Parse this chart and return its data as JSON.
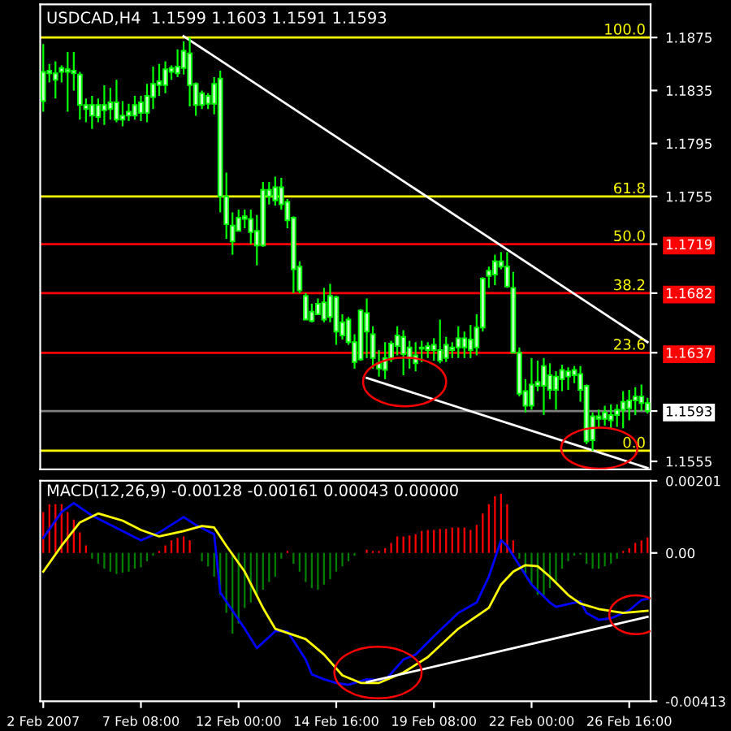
{
  "chart_data": [
    {
      "type": "candlestick",
      "title": "USDCAD,H4  1.1599 1.1603 1.1591 1.1593",
      "categories": [
        null,
        null,
        null,
        null,
        null,
        null,
        null,
        null,
        null,
        null,
        null,
        null,
        null,
        null,
        null,
        null,
        null,
        null,
        null,
        null,
        null,
        null,
        null,
        null,
        null,
        null,
        null,
        null,
        null,
        null,
        null,
        null,
        null,
        null,
        null,
        null,
        null,
        null,
        null,
        null,
        null,
        null,
        null,
        null,
        null,
        null,
        null,
        null,
        null,
        null,
        null,
        null,
        null,
        null,
        null,
        null,
        null,
        null,
        null,
        null,
        null,
        null,
        null,
        null,
        null,
        null,
        null,
        null,
        null,
        null,
        null,
        null,
        null,
        null,
        null,
        null,
        null,
        null,
        null,
        null,
        null,
        null,
        null,
        null,
        null,
        null,
        null,
        null,
        null,
        null,
        null,
        null,
        null,
        null,
        null,
        null,
        null,
        null,
        null,
        null
      ],
      "ohlc": [
        [
          1.1849,
          1.187,
          1.1819,
          1.1827
        ],
        [
          1.185,
          1.1855,
          1.1841,
          1.1848
        ],
        [
          1.1848,
          1.1857,
          1.1829,
          1.1843
        ],
        [
          1.1852,
          1.1854,
          1.1841,
          1.1849
        ],
        [
          1.1851,
          1.1864,
          1.1819,
          1.1849
        ],
        [
          1.185,
          1.1864,
          1.1835,
          1.1848
        ],
        [
          1.1847,
          1.1849,
          1.1813,
          1.1824
        ],
        [
          1.1824,
          1.1829,
          1.1811,
          1.1821
        ],
        [
          1.1824,
          1.1831,
          1.1806,
          1.1816
        ],
        [
          1.1824,
          1.1829,
          1.1811,
          1.1815
        ],
        [
          1.1824,
          1.1839,
          1.1809,
          1.182
        ],
        [
          1.1826,
          1.1837,
          1.1813,
          1.1821
        ],
        [
          1.1826,
          1.1843,
          1.1811,
          1.1813
        ],
        [
          1.1816,
          1.1827,
          1.1808,
          1.1813
        ],
        [
          1.1819,
          1.1825,
          1.1812,
          1.1816
        ],
        [
          1.1824,
          1.1831,
          1.1813,
          1.1816
        ],
        [
          1.1826,
          1.1831,
          1.1812,
          1.1818
        ],
        [
          1.1831,
          1.184,
          1.1811,
          1.1818
        ],
        [
          1.184,
          1.1853,
          1.1821,
          1.183
        ],
        [
          1.1842,
          1.1855,
          1.1831,
          1.1839
        ],
        [
          1.1851,
          1.1857,
          1.1833,
          1.1839
        ],
        [
          1.1852,
          1.1854,
          1.1843,
          1.1849
        ],
        [
          1.1853,
          1.1866,
          1.1845,
          1.1848
        ],
        [
          1.1865,
          1.1872,
          1.1847,
          1.1852
        ],
        [
          1.1863,
          1.1875,
          1.1823,
          1.1839
        ],
        [
          1.184,
          1.1841,
          1.1816,
          1.1824
        ],
        [
          1.1833,
          1.1835,
          1.1821,
          1.1824
        ],
        [
          1.1831,
          1.1833,
          1.1821,
          1.1825
        ],
        [
          1.184,
          1.1845,
          1.1817,
          1.1825
        ],
        [
          1.1844,
          1.185,
          1.1743,
          1.1755
        ],
        [
          1.1755,
          1.1773,
          1.1723,
          1.1734
        ],
        [
          1.1733,
          1.1743,
          1.1711,
          1.1721
        ],
        [
          1.1739,
          1.1745,
          1.1729,
          1.1729
        ],
        [
          1.174,
          1.1745,
          1.1731,
          1.1738
        ],
        [
          1.1738,
          1.1745,
          1.1719,
          1.1728
        ],
        [
          1.1729,
          1.1741,
          1.1703,
          1.1718
        ],
        [
          1.176,
          1.1766,
          1.1717,
          1.1718
        ],
        [
          1.176,
          1.1766,
          1.1749,
          1.1755
        ],
        [
          1.1762,
          1.177,
          1.1748,
          1.1752
        ],
        [
          1.1762,
          1.1769,
          1.1745,
          1.1749
        ],
        [
          1.1751,
          1.1753,
          1.1731,
          1.1737
        ],
        [
          1.1739,
          1.174,
          1.1682,
          1.17
        ],
        [
          1.1702,
          1.1706,
          1.1682,
          1.1684
        ],
        [
          1.168,
          1.1682,
          1.1662,
          1.1662
        ],
        [
          1.1668,
          1.1674,
          1.166,
          1.1661
        ],
        [
          1.1674,
          1.1678,
          1.1666,
          1.1666
        ],
        [
          1.1675,
          1.1686,
          1.166,
          1.1662
        ],
        [
          1.168,
          1.1689,
          1.166,
          1.1664
        ],
        [
          1.1679,
          1.168,
          1.1643,
          1.1653
        ],
        [
          1.166,
          1.1666,
          1.1647,
          1.165
        ],
        [
          1.1662,
          1.1664,
          1.1643,
          1.1645
        ],
        [
          1.1645,
          1.1651,
          1.1625,
          1.163
        ],
        [
          1.1669,
          1.167,
          1.1631,
          1.1632
        ],
        [
          1.1667,
          1.1678,
          1.1633,
          1.1653
        ],
        [
          1.1651,
          1.1657,
          1.1625,
          1.1633
        ],
        [
          1.1629,
          1.1639,
          1.1619,
          1.1625
        ],
        [
          1.1633,
          1.1645,
          1.1617,
          1.1624
        ],
        [
          1.1644,
          1.1646,
          1.163,
          1.1633
        ],
        [
          1.165,
          1.1657,
          1.1635,
          1.1642
        ],
        [
          1.1649,
          1.1654,
          1.162,
          1.1636
        ],
        [
          1.1641,
          1.1646,
          1.1625,
          1.1633
        ],
        [
          1.1635,
          1.1645,
          1.1623,
          1.1629
        ],
        [
          1.1641,
          1.1646,
          1.163,
          1.164
        ],
        [
          1.1642,
          1.1645,
          1.1633,
          1.1639
        ],
        [
          1.1643,
          1.1648,
          1.1631,
          1.1639
        ],
        [
          1.1639,
          1.1662,
          1.1629,
          1.1631
        ],
        [
          1.1643,
          1.1649,
          1.163,
          1.1633
        ],
        [
          1.1641,
          1.1645,
          1.1633,
          1.1639
        ],
        [
          1.1648,
          1.1657,
          1.1633,
          1.1641
        ],
        [
          1.1648,
          1.1653,
          1.1633,
          1.1641
        ],
        [
          1.1647,
          1.1658,
          1.1633,
          1.1639
        ],
        [
          1.1656,
          1.1666,
          1.1635,
          1.1641
        ],
        [
          1.1693,
          1.1694,
          1.1653,
          1.1656
        ],
        [
          1.1699,
          1.1702,
          1.1686,
          1.1695
        ],
        [
          1.1706,
          1.1711,
          1.1688,
          1.1696
        ],
        [
          1.1706,
          1.1713,
          1.17,
          1.1702
        ],
        [
          1.1702,
          1.1713,
          1.1686,
          1.1687
        ],
        [
          1.1686,
          1.1698,
          1.1637,
          1.1637
        ],
        [
          1.1637,
          1.1641,
          1.1604,
          1.1606
        ],
        [
          1.1608,
          1.1617,
          1.1592,
          1.1597
        ],
        [
          1.1613,
          1.1633,
          1.1594,
          1.1597
        ],
        [
          1.1615,
          1.1631,
          1.1608,
          1.1612
        ],
        [
          1.1627,
          1.1633,
          1.159,
          1.1612
        ],
        [
          1.162,
          1.1629,
          1.1602,
          1.1609
        ],
        [
          1.1619,
          1.1623,
          1.1594,
          1.1609
        ],
        [
          1.1624,
          1.1628,
          1.1608,
          1.1617
        ],
        [
          1.1623,
          1.1626,
          1.1609,
          1.1619
        ],
        [
          1.1624,
          1.1627,
          1.1614,
          1.162
        ],
        [
          1.1621,
          1.1627,
          1.16,
          1.1609
        ],
        [
          1.1612,
          1.1613,
          1.1568,
          1.157
        ],
        [
          1.1589,
          1.1592,
          1.1563,
          1.1571
        ],
        [
          1.1589,
          1.1594,
          1.158,
          1.1587
        ],
        [
          1.1592,
          1.1597,
          1.1582,
          1.1587
        ],
        [
          1.159,
          1.1598,
          1.158,
          1.1586
        ],
        [
          1.1594,
          1.1598,
          1.1581,
          1.159
        ],
        [
          1.16,
          1.1608,
          1.158,
          1.1594
        ],
        [
          1.1601,
          1.1609,
          1.1586,
          1.1595
        ],
        [
          1.1604,
          1.1611,
          1.159,
          1.1601
        ],
        [
          1.1604,
          1.1613,
          1.1593,
          1.1599
        ],
        [
          1.1599,
          1.1603,
          1.1591,
          1.1593
        ]
      ],
      "series": [
        {
          "type": "line",
          "color": "#ffffff",
          "values": [
            null,
            null,
            null,
            null,
            null,
            null,
            null,
            null,
            null,
            null,
            null,
            null,
            null,
            null,
            null,
            null,
            null,
            null,
            null,
            null,
            null,
            null,
            null,
            1.1876,
            null,
            null,
            null,
            null,
            null,
            null,
            null,
            null,
            null,
            null,
            null,
            null,
            null,
            null,
            null,
            null,
            null,
            null,
            null,
            null,
            null,
            null,
            null,
            null,
            null,
            null,
            null,
            null,
            null,
            null,
            null,
            null,
            null,
            null,
            null,
            null,
            null,
            null,
            null,
            null,
            null,
            null,
            null,
            null,
            null,
            null,
            null,
            null,
            null,
            null,
            null,
            null,
            null,
            null,
            null,
            null,
            null,
            null,
            null,
            null,
            null,
            null,
            null,
            null,
            null,
            null,
            null,
            null,
            null,
            null,
            null,
            null,
            null,
            null,
            null,
            1.1645
          ]
        },
        {
          "type": "line",
          "color": "#ffffff",
          "values": [
            null,
            null,
            null,
            null,
            null,
            null,
            null,
            null,
            null,
            null,
            null,
            null,
            null,
            null,
            null,
            null,
            null,
            null,
            null,
            null,
            null,
            null,
            null,
            null,
            null,
            null,
            null,
            null,
            null,
            null,
            null,
            null,
            null,
            null,
            null,
            null,
            null,
            null,
            null,
            null,
            null,
            null,
            null,
            null,
            null,
            null,
            null,
            null,
            null,
            null,
            null,
            null,
            null,
            1.1618,
            null,
            null,
            null,
            null,
            null,
            null,
            null,
            null,
            null,
            null,
            null,
            null,
            null,
            null,
            null,
            null,
            null,
            null,
            null,
            null,
            null,
            null,
            null,
            null,
            null,
            null,
            null,
            null,
            null,
            null,
            null,
            null,
            null,
            null,
            null,
            null,
            null,
            null,
            null,
            null,
            null,
            null,
            null,
            null,
            null,
            1.155
          ]
        }
      ],
      "ref_lines": [
        {
          "axis": "y",
          "value": 1.1875,
          "color": "#ffff00"
        },
        {
          "axis": "y",
          "value": 1.1755,
          "color": "#ffff00"
        },
        {
          "axis": "y",
          "value": 1.1719,
          "color": "#ff0000"
        },
        {
          "axis": "y",
          "value": 1.1682,
          "color": "#ff0000"
        },
        {
          "axis": "y",
          "value": 1.1637,
          "color": "#ff0000"
        },
        {
          "axis": "y",
          "value": 1.1593,
          "color": "#808080"
        },
        {
          "axis": "y",
          "value": 1.1563,
          "color": "#ffff00"
        }
      ],
      "annotations": [
        {
          "text": "100.0",
          "y": 1.1875
        },
        {
          "text": "61.8",
          "y": 1.1755
        },
        {
          "text": "50.0",
          "y": 1.1719
        },
        {
          "text": "38.2",
          "y": 1.1682
        },
        {
          "text": "23.6",
          "y": 1.1637
        },
        {
          "text": "0.0",
          "y": 1.1563
        }
      ],
      "ylim": [
        1.1549,
        1.19
      ],
      "yticks": [
        1.1875,
        1.1835,
        1.1795,
        1.1755,
        1.1719,
        1.1682,
        1.1637,
        1.1593,
        1.1555
      ]
    },
    {
      "type": "line",
      "title": "MACD(12,26,9) -0.00128 -0.00161 0.00043 0.00000",
      "categories": [
        "2 Feb 2007",
        null,
        null,
        null,
        null,
        null,
        null,
        null,
        null,
        null,
        null,
        null,
        null,
        null,
        null,
        null,
        "7 Feb 08:00",
        null,
        null,
        null,
        null,
        null,
        null,
        null,
        null,
        null,
        null,
        null,
        null,
        null,
        null,
        null,
        "12 Feb 00:00",
        null,
        null,
        null,
        null,
        null,
        null,
        null,
        null,
        null,
        null,
        null,
        null,
        null,
        null,
        null,
        "14 Feb 16:00",
        null,
        null,
        null,
        null,
        null,
        null,
        null,
        null,
        null,
        null,
        null,
        null,
        null,
        null,
        null,
        "19 Feb 08:00",
        null,
        null,
        null,
        null,
        null,
        null,
        null,
        null,
        null,
        null,
        null,
        null,
        null,
        null,
        null,
        "22 Feb 00:00",
        null,
        null,
        null,
        null,
        null,
        null,
        null,
        null,
        null,
        null,
        null,
        null,
        null,
        null,
        null,
        "26 Feb 16:00",
        null,
        null,
        null
      ],
      "series": [
        {
          "type": "bar",
          "values": [
            0.00114,
            0.00136,
            0.00136,
            0.00136,
            0.00114,
            0.00093,
            0.00057,
            0.00021,
            -0.00016,
            -0.0003,
            -0.00044,
            -0.00052,
            -0.00059,
            -0.00055,
            -0.00052,
            -0.00044,
            -0.0004,
            -0.00023,
            -8e-05,
            6e-05,
            0.00021,
            0.00035,
            0.00042,
            0.00046,
            0.00035,
            0,
            -0.00023,
            -0.00037,
            -0.00066,
            -0.00117,
            -0.00167,
            -0.00225,
            -0.00196,
            -0.00153,
            -0.00138,
            -0.00117,
            -0.00102,
            -0.00081,
            -0.00066,
            -0.00016,
            6e-05,
            -0.0003,
            -0.00052,
            -0.00081,
            -0.00098,
            -0.00102,
            -0.00088,
            -0.00073,
            -0.00052,
            -0.00037,
            -0.00023,
            -8e-05,
            0,
            9e-05,
            6e-05,
            6e-05,
            0.00013,
            0.00028,
            0.00046,
            0.00046,
            0.00049,
            0.00052,
            0.00061,
            0.00064,
            0.00064,
            0.00067,
            0.00067,
            0.00071,
            0.00071,
            0.00071,
            0.00064,
            0.00078,
            0.0011,
            0.00136,
            0.00158,
            0.00165,
            0.00136,
            0.00035,
            -0.00016,
            -0.00066,
            -0.00088,
            -0.00117,
            -0.00117,
            -0.00098,
            -0.00081,
            -0.00044,
            -0.00023,
            -8e-05,
            -5e-05,
            -0.0003,
            -0.00044,
            -0.00044,
            -0.00037,
            -0.0003,
            -0.00016,
            6e-05,
            0.00013,
            0.00028,
            0.00035,
            0.00043
          ],
          "colors": [
            "#ff0000",
            "#ff0000",
            "#ff0000",
            "#ff0000",
            "#ff0000",
            "#ff0000",
            "#ff0000",
            "#ff0000",
            "#008000",
            "#008000",
            "#008000",
            "#008000",
            "#008000",
            "#008000",
            "#008000",
            "#008000",
            "#008000",
            "#008000",
            "#008000",
            "#ff0000",
            "#ff0000",
            "#ff0000",
            "#ff0000",
            "#ff0000",
            "#ff0000",
            "#008000",
            "#008000",
            "#008000",
            "#008000",
            "#008000",
            "#008000",
            "#008000",
            "#008000",
            "#008000",
            "#008000",
            "#008000",
            "#008000",
            "#008000",
            "#008000",
            "#008000",
            "#ff0000",
            "#008000",
            "#008000",
            "#008000",
            "#008000",
            "#008000",
            "#008000",
            "#008000",
            "#008000",
            "#008000",
            "#008000",
            "#008000",
            "#008000",
            "#ff0000",
            "#ff0000",
            "#ff0000",
            "#ff0000",
            "#ff0000",
            "#ff0000",
            "#ff0000",
            "#ff0000",
            "#ff0000",
            "#ff0000",
            "#ff0000",
            "#ff0000",
            "#ff0000",
            "#ff0000",
            "#ff0000",
            "#ff0000",
            "#ff0000",
            "#ff0000",
            "#ff0000",
            "#ff0000",
            "#ff0000",
            "#ff0000",
            "#ff0000",
            "#ff0000",
            "#ff0000",
            "#008000",
            "#008000",
            "#008000",
            "#008000",
            "#008000",
            "#008000",
            "#008000",
            "#008000",
            "#008000",
            "#008000",
            "#008000",
            "#008000",
            "#008000",
            "#008000",
            "#008000",
            "#008000",
            "#008000",
            "#ff0000",
            "#ff0000",
            "#ff0000",
            "#ff0000",
            "#ff0000"
          ]
        },
        {
          "type": "line",
          "color": "#0000ff",
          "values": [
            0.00042,
            null,
            null,
            0.00114,
            null,
            0.00139,
            null,
            null,
            0.00104,
            null,
            null,
            0.00078,
            null,
            null,
            null,
            null,
            0.00035,
            null,
            null,
            0.00057,
            null,
            null,
            null,
            0.001,
            null,
            0.00078,
            null,
            null,
            0.00052,
            -0.0011,
            null,
            null,
            null,
            -0.00211,
            null,
            -0.00265,
            null,
            null,
            -0.00218,
            null,
            -0.00218,
            null,
            null,
            -0.00297,
            -0.00338,
            null,
            -0.00352,
            null,
            -0.00362,
            null,
            -0.00367,
            null,
            null,
            -0.00352,
            null,
            null,
            -0.00355,
            null,
            null,
            -0.00297,
            null,
            -0.00283,
            null,
            null,
            -0.00232,
            null,
            null,
            null,
            -0.00167,
            null,
            null,
            -0.00138,
            null,
            -0.00066,
            null,
            0.00035,
            0.0002,
            -8e-05,
            null,
            null,
            -0.00088,
            null,
            null,
            -0.00138,
            -0.0015,
            null,
            null,
            null,
            -0.00135,
            -0.00167,
            null,
            -0.00186,
            null,
            -0.00182,
            null,
            null,
            -0.0016,
            null,
            -0.00131,
            -0.00128
          ]
        },
        {
          "type": "line",
          "color": "#ffff00",
          "values": [
            -0.00052,
            null,
            null,
            0.0002,
            null,
            null,
            0.00085,
            null,
            null,
            0.0011,
            null,
            null,
            null,
            0.0009,
            null,
            null,
            0.00064,
            null,
            null,
            0.00046,
            null,
            null,
            null,
            0.00061,
            null,
            null,
            0.00075,
            null,
            0.00071,
            null,
            0.0002,
            null,
            null,
            -0.00052,
            null,
            null,
            -0.00153,
            null,
            -0.00211,
            null,
            null,
            null,
            null,
            -0.0024,
            null,
            null,
            -0.00283,
            null,
            null,
            -0.00341,
            null,
            null,
            -0.00362,
            null,
            null,
            -0.00362,
            null,
            null,
            null,
            -0.00333,
            null,
            null,
            null,
            -0.0029,
            null,
            null,
            null,
            null,
            -0.00211,
            null,
            null,
            null,
            null,
            -0.00153,
            null,
            -0.00088,
            null,
            -0.00052,
            null,
            -0.00034,
            null,
            -0.00037,
            null,
            -0.00066,
            null,
            null,
            -0.00117,
            null,
            -0.00141,
            null,
            null,
            -0.00156,
            null,
            null,
            null,
            -0.00167,
            null,
            null,
            null,
            -0.00161
          ]
        },
        {
          "type": "line",
          "color": "#ffffff",
          "values": [
            null,
            null,
            null,
            null,
            null,
            null,
            null,
            null,
            null,
            null,
            null,
            null,
            null,
            null,
            null,
            null,
            null,
            null,
            null,
            null,
            null,
            null,
            null,
            null,
            null,
            null,
            null,
            null,
            null,
            null,
            null,
            null,
            null,
            null,
            null,
            null,
            null,
            null,
            null,
            null,
            null,
            null,
            null,
            null,
            null,
            null,
            null,
            null,
            null,
            null,
            null,
            null,
            null,
            -0.0036,
            null,
            null,
            null,
            null,
            null,
            null,
            null,
            null,
            null,
            null,
            null,
            null,
            null,
            null,
            null,
            null,
            null,
            null,
            null,
            null,
            null,
            null,
            null,
            null,
            null,
            null,
            null,
            null,
            null,
            null,
            null,
            null,
            null,
            null,
            null,
            null,
            null,
            null,
            null,
            null,
            null,
            null,
            null,
            null,
            null,
            -0.00178
          ]
        }
      ],
      "ylim": [
        -0.00413,
        0.00201
      ],
      "yticks": [
        0.00201,
        {
          "value": 0,
          "label": "0.00"
        },
        -0.00413
      ]
    }
  ]
}
